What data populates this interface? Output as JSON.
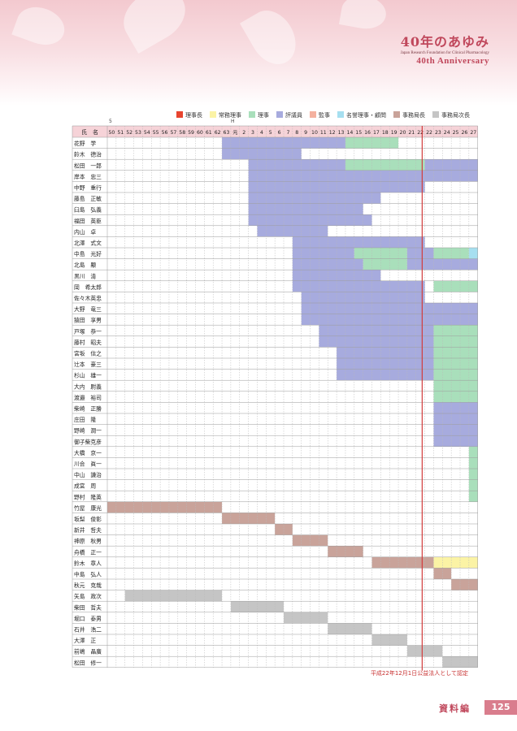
{
  "header": {
    "brand_title": "40年のあゆみ",
    "brand_subtitle": "Japan Research Foundation for Clinical Pharmacology",
    "brand_anniversary": "40th Anniversary"
  },
  "legend": [
    {
      "label": "理事長",
      "color": "#e8442f"
    },
    {
      "label": "常務理事",
      "color": "#fbf3a5"
    },
    {
      "label": "理事",
      "color": "#a9dfbb"
    },
    {
      "label": "評議員",
      "color": "#a7abde"
    },
    {
      "label": "監事",
      "color": "#f4b19f"
    },
    {
      "label": "名誉理事・顧問",
      "color": "#a6dff0"
    },
    {
      "label": "事務局長",
      "color": "#c9a39a"
    },
    {
      "label": "事務局次長",
      "color": "#c5c5c5"
    }
  ],
  "markers": {
    "showa": "5",
    "heisei": "H"
  },
  "table": {
    "name_header": "氏　名",
    "years": [
      "50",
      "51",
      "52",
      "53",
      "54",
      "55",
      "56",
      "57",
      "58",
      "59",
      "60",
      "61",
      "62",
      "63",
      "元",
      "2",
      "3",
      "4",
      "5",
      "6",
      "7",
      "8",
      "9",
      "10",
      "11",
      "12",
      "13",
      "14",
      "15",
      "16",
      "17",
      "18",
      "19",
      "20",
      "21",
      "22",
      "22",
      "23",
      "24",
      "25",
      "26",
      "27"
    ],
    "rows": [
      {
        "name": "花野　学",
        "segments": [
          [
            13,
            26,
            "評議員"
          ],
          [
            27,
            32,
            "理事"
          ]
        ]
      },
      {
        "name": "鈴木　德治",
        "segments": [
          [
            13,
            21,
            "評議員"
          ]
        ]
      },
      {
        "name": "松田　一郎",
        "segments": [
          [
            16,
            26,
            "評議員"
          ],
          [
            27,
            35,
            "理事"
          ],
          [
            36,
            41,
            "評議員"
          ]
        ]
      },
      {
        "name": "岸本　忠三",
        "segments": [
          [
            16,
            41,
            "評議員"
          ]
        ]
      },
      {
        "name": "中野　重行",
        "segments": [
          [
            16,
            35,
            "評議員"
          ]
        ]
      },
      {
        "name": "藤島　正敏",
        "segments": [
          [
            16,
            30,
            "評議員"
          ]
        ]
      },
      {
        "name": "臼島　弘義",
        "segments": [
          [
            16,
            28,
            "評議員"
          ]
        ]
      },
      {
        "name": "福田　英臣",
        "segments": [
          [
            16,
            29,
            "評議員"
          ]
        ]
      },
      {
        "name": "内山　卓",
        "segments": [
          [
            17,
            24,
            "評議員"
          ]
        ]
      },
      {
        "name": "北澤　式文",
        "segments": [
          [
            21,
            35,
            "評議員"
          ]
        ]
      },
      {
        "name": "中島　光好",
        "segments": [
          [
            21,
            27,
            "評議員"
          ],
          [
            28,
            33,
            "理事"
          ],
          [
            34,
            36,
            "評議員"
          ],
          [
            37,
            40,
            "理事"
          ],
          [
            41,
            41,
            "名誉理事・顧問"
          ]
        ]
      },
      {
        "name": "北島　颙",
        "segments": [
          [
            21,
            28,
            "評議員"
          ],
          [
            29,
            33,
            "理事"
          ],
          [
            34,
            41,
            "評議員"
          ]
        ]
      },
      {
        "name": "黒川　清",
        "segments": [
          [
            21,
            30,
            "評議員"
          ]
        ]
      },
      {
        "name": "岡　希太郎",
        "segments": [
          [
            21,
            35,
            "評議員"
          ],
          [
            37,
            41,
            "理事"
          ]
        ]
      },
      {
        "name": "佐々木英忠",
        "segments": [
          [
            22,
            35,
            "評議員"
          ]
        ]
      },
      {
        "name": "大野　竜三",
        "segments": [
          [
            22,
            41,
            "評議員"
          ]
        ]
      },
      {
        "name": "猿田　享男",
        "segments": [
          [
            22,
            41,
            "評議員"
          ]
        ]
      },
      {
        "name": "戸塚　恭一",
        "segments": [
          [
            24,
            36,
            "評議員"
          ],
          [
            37,
            41,
            "理事"
          ]
        ]
      },
      {
        "name": "藤村　昭夫",
        "segments": [
          [
            24,
            36,
            "評議員"
          ],
          [
            37,
            41,
            "理事"
          ]
        ]
      },
      {
        "name": "宮坂　信之",
        "segments": [
          [
            26,
            36,
            "評議員"
          ],
          [
            37,
            41,
            "理事"
          ]
        ]
      },
      {
        "name": "辻本　豪三",
        "segments": [
          [
            26,
            36,
            "評議員"
          ],
          [
            37,
            41,
            "理事"
          ]
        ]
      },
      {
        "name": "杉山　雄一",
        "segments": [
          [
            26,
            36,
            "評議員"
          ],
          [
            37,
            41,
            "理事"
          ]
        ]
      },
      {
        "name": "大内　尉義",
        "segments": [
          [
            37,
            41,
            "理事"
          ]
        ]
      },
      {
        "name": "渡邉　裕司",
        "segments": [
          [
            37,
            41,
            "理事"
          ]
        ]
      },
      {
        "name": "柴崎　正勝",
        "segments": [
          [
            37,
            41,
            "評議員"
          ]
        ]
      },
      {
        "name": "庄田　隆",
        "segments": [
          [
            37,
            41,
            "評議員"
          ]
        ]
      },
      {
        "name": "野崎　潤一",
        "segments": [
          [
            37,
            41,
            "評議員"
          ]
        ]
      },
      {
        "name": "御子柴克彦",
        "segments": [
          [
            37,
            41,
            "評議員"
          ]
        ]
      },
      {
        "name": "大橋　京一",
        "segments": [
          [
            41,
            41,
            "理事"
          ]
        ]
      },
      {
        "name": "川合　眞一",
        "segments": [
          [
            41,
            41,
            "理事"
          ]
        ]
      },
      {
        "name": "中山　謙治",
        "segments": [
          [
            41,
            41,
            "理事"
          ]
        ]
      },
      {
        "name": "成宮　周",
        "segments": [
          [
            41,
            41,
            "理事"
          ]
        ]
      },
      {
        "name": "野村　隆英",
        "segments": [
          [
            41,
            41,
            "理事"
          ]
        ]
      },
      {
        "name": "竹屋　康光",
        "segments": [
          [
            0,
            12,
            "事務局長"
          ]
        ]
      },
      {
        "name": "坂梨　俊彰",
        "segments": [
          [
            13,
            18,
            "事務局長"
          ]
        ]
      },
      {
        "name": "新井　哲夫",
        "segments": [
          [
            19,
            20,
            "事務局長"
          ]
        ]
      },
      {
        "name": "神原　秋男",
        "segments": [
          [
            21,
            24,
            "事務局長"
          ]
        ]
      },
      {
        "name": "舟橋　正一",
        "segments": [
          [
            25,
            28,
            "事務局長"
          ]
        ]
      },
      {
        "name": "鈴木　章人",
        "segments": [
          [
            30,
            36,
            "事務局長"
          ],
          [
            37,
            41,
            "常務理事"
          ]
        ]
      },
      {
        "name": "中島　弘人",
        "segments": [
          [
            37,
            38,
            "事務局長"
          ]
        ]
      },
      {
        "name": "秋元　克哉",
        "segments": [
          [
            39,
            41,
            "事務局長"
          ]
        ]
      },
      {
        "name": "矢島　政次",
        "segments": [
          [
            2,
            12,
            "事務局次長"
          ]
        ]
      },
      {
        "name": "柴田　哲夫",
        "segments": [
          [
            14,
            19,
            "事務局次長"
          ]
        ]
      },
      {
        "name": "堀口　泰男",
        "segments": [
          [
            20,
            24,
            "事務局次長"
          ]
        ]
      },
      {
        "name": "石井　浩二",
        "segments": [
          [
            25,
            29,
            "事務局次長"
          ]
        ]
      },
      {
        "name": "大澤　正",
        "segments": [
          [
            30,
            33,
            "事務局次長"
          ]
        ]
      },
      {
        "name": "前嶋　晶廣",
        "segments": [
          [
            34,
            37,
            "事務局次長"
          ]
        ]
      },
      {
        "name": "松田　修一",
        "segments": [
          [
            38,
            41,
            "事務局次長"
          ]
        ]
      }
    ]
  },
  "footnote": "平成22年12月1日公益法人として認定",
  "footer": {
    "section": "資料編",
    "page": "125"
  }
}
